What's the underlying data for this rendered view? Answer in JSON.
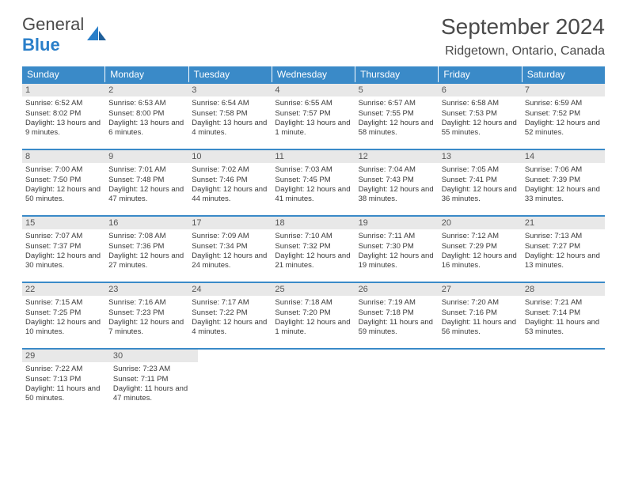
{
  "logo": {
    "text1": "General",
    "text2": "Blue"
  },
  "month_title": "September 2024",
  "location": "Ridgetown, Ontario, Canada",
  "header_bg": "#3a8ac8",
  "daynum_bg": "#e8e8e8",
  "border_color": "#3a8ac8",
  "weekdays": [
    "Sunday",
    "Monday",
    "Tuesday",
    "Wednesday",
    "Thursday",
    "Friday",
    "Saturday"
  ],
  "weeks": [
    [
      {
        "n": "1",
        "sr": "Sunrise: 6:52 AM",
        "ss": "Sunset: 8:02 PM",
        "dl": "Daylight: 13 hours and 9 minutes."
      },
      {
        "n": "2",
        "sr": "Sunrise: 6:53 AM",
        "ss": "Sunset: 8:00 PM",
        "dl": "Daylight: 13 hours and 6 minutes."
      },
      {
        "n": "3",
        "sr": "Sunrise: 6:54 AM",
        "ss": "Sunset: 7:58 PM",
        "dl": "Daylight: 13 hours and 4 minutes."
      },
      {
        "n": "4",
        "sr": "Sunrise: 6:55 AM",
        "ss": "Sunset: 7:57 PM",
        "dl": "Daylight: 13 hours and 1 minute."
      },
      {
        "n": "5",
        "sr": "Sunrise: 6:57 AM",
        "ss": "Sunset: 7:55 PM",
        "dl": "Daylight: 12 hours and 58 minutes."
      },
      {
        "n": "6",
        "sr": "Sunrise: 6:58 AM",
        "ss": "Sunset: 7:53 PM",
        "dl": "Daylight: 12 hours and 55 minutes."
      },
      {
        "n": "7",
        "sr": "Sunrise: 6:59 AM",
        "ss": "Sunset: 7:52 PM",
        "dl": "Daylight: 12 hours and 52 minutes."
      }
    ],
    [
      {
        "n": "8",
        "sr": "Sunrise: 7:00 AM",
        "ss": "Sunset: 7:50 PM",
        "dl": "Daylight: 12 hours and 50 minutes."
      },
      {
        "n": "9",
        "sr": "Sunrise: 7:01 AM",
        "ss": "Sunset: 7:48 PM",
        "dl": "Daylight: 12 hours and 47 minutes."
      },
      {
        "n": "10",
        "sr": "Sunrise: 7:02 AM",
        "ss": "Sunset: 7:46 PM",
        "dl": "Daylight: 12 hours and 44 minutes."
      },
      {
        "n": "11",
        "sr": "Sunrise: 7:03 AM",
        "ss": "Sunset: 7:45 PM",
        "dl": "Daylight: 12 hours and 41 minutes."
      },
      {
        "n": "12",
        "sr": "Sunrise: 7:04 AM",
        "ss": "Sunset: 7:43 PM",
        "dl": "Daylight: 12 hours and 38 minutes."
      },
      {
        "n": "13",
        "sr": "Sunrise: 7:05 AM",
        "ss": "Sunset: 7:41 PM",
        "dl": "Daylight: 12 hours and 36 minutes."
      },
      {
        "n": "14",
        "sr": "Sunrise: 7:06 AM",
        "ss": "Sunset: 7:39 PM",
        "dl": "Daylight: 12 hours and 33 minutes."
      }
    ],
    [
      {
        "n": "15",
        "sr": "Sunrise: 7:07 AM",
        "ss": "Sunset: 7:37 PM",
        "dl": "Daylight: 12 hours and 30 minutes."
      },
      {
        "n": "16",
        "sr": "Sunrise: 7:08 AM",
        "ss": "Sunset: 7:36 PM",
        "dl": "Daylight: 12 hours and 27 minutes."
      },
      {
        "n": "17",
        "sr": "Sunrise: 7:09 AM",
        "ss": "Sunset: 7:34 PM",
        "dl": "Daylight: 12 hours and 24 minutes."
      },
      {
        "n": "18",
        "sr": "Sunrise: 7:10 AM",
        "ss": "Sunset: 7:32 PM",
        "dl": "Daylight: 12 hours and 21 minutes."
      },
      {
        "n": "19",
        "sr": "Sunrise: 7:11 AM",
        "ss": "Sunset: 7:30 PM",
        "dl": "Daylight: 12 hours and 19 minutes."
      },
      {
        "n": "20",
        "sr": "Sunrise: 7:12 AM",
        "ss": "Sunset: 7:29 PM",
        "dl": "Daylight: 12 hours and 16 minutes."
      },
      {
        "n": "21",
        "sr": "Sunrise: 7:13 AM",
        "ss": "Sunset: 7:27 PM",
        "dl": "Daylight: 12 hours and 13 minutes."
      }
    ],
    [
      {
        "n": "22",
        "sr": "Sunrise: 7:15 AM",
        "ss": "Sunset: 7:25 PM",
        "dl": "Daylight: 12 hours and 10 minutes."
      },
      {
        "n": "23",
        "sr": "Sunrise: 7:16 AM",
        "ss": "Sunset: 7:23 PM",
        "dl": "Daylight: 12 hours and 7 minutes."
      },
      {
        "n": "24",
        "sr": "Sunrise: 7:17 AM",
        "ss": "Sunset: 7:22 PM",
        "dl": "Daylight: 12 hours and 4 minutes."
      },
      {
        "n": "25",
        "sr": "Sunrise: 7:18 AM",
        "ss": "Sunset: 7:20 PM",
        "dl": "Daylight: 12 hours and 1 minute."
      },
      {
        "n": "26",
        "sr": "Sunrise: 7:19 AM",
        "ss": "Sunset: 7:18 PM",
        "dl": "Daylight: 11 hours and 59 minutes."
      },
      {
        "n": "27",
        "sr": "Sunrise: 7:20 AM",
        "ss": "Sunset: 7:16 PM",
        "dl": "Daylight: 11 hours and 56 minutes."
      },
      {
        "n": "28",
        "sr": "Sunrise: 7:21 AM",
        "ss": "Sunset: 7:14 PM",
        "dl": "Daylight: 11 hours and 53 minutes."
      }
    ],
    [
      {
        "n": "29",
        "sr": "Sunrise: 7:22 AM",
        "ss": "Sunset: 7:13 PM",
        "dl": "Daylight: 11 hours and 50 minutes."
      },
      {
        "n": "30",
        "sr": "Sunrise: 7:23 AM",
        "ss": "Sunset: 7:11 PM",
        "dl": "Daylight: 11 hours and 47 minutes."
      },
      null,
      null,
      null,
      null,
      null
    ]
  ]
}
